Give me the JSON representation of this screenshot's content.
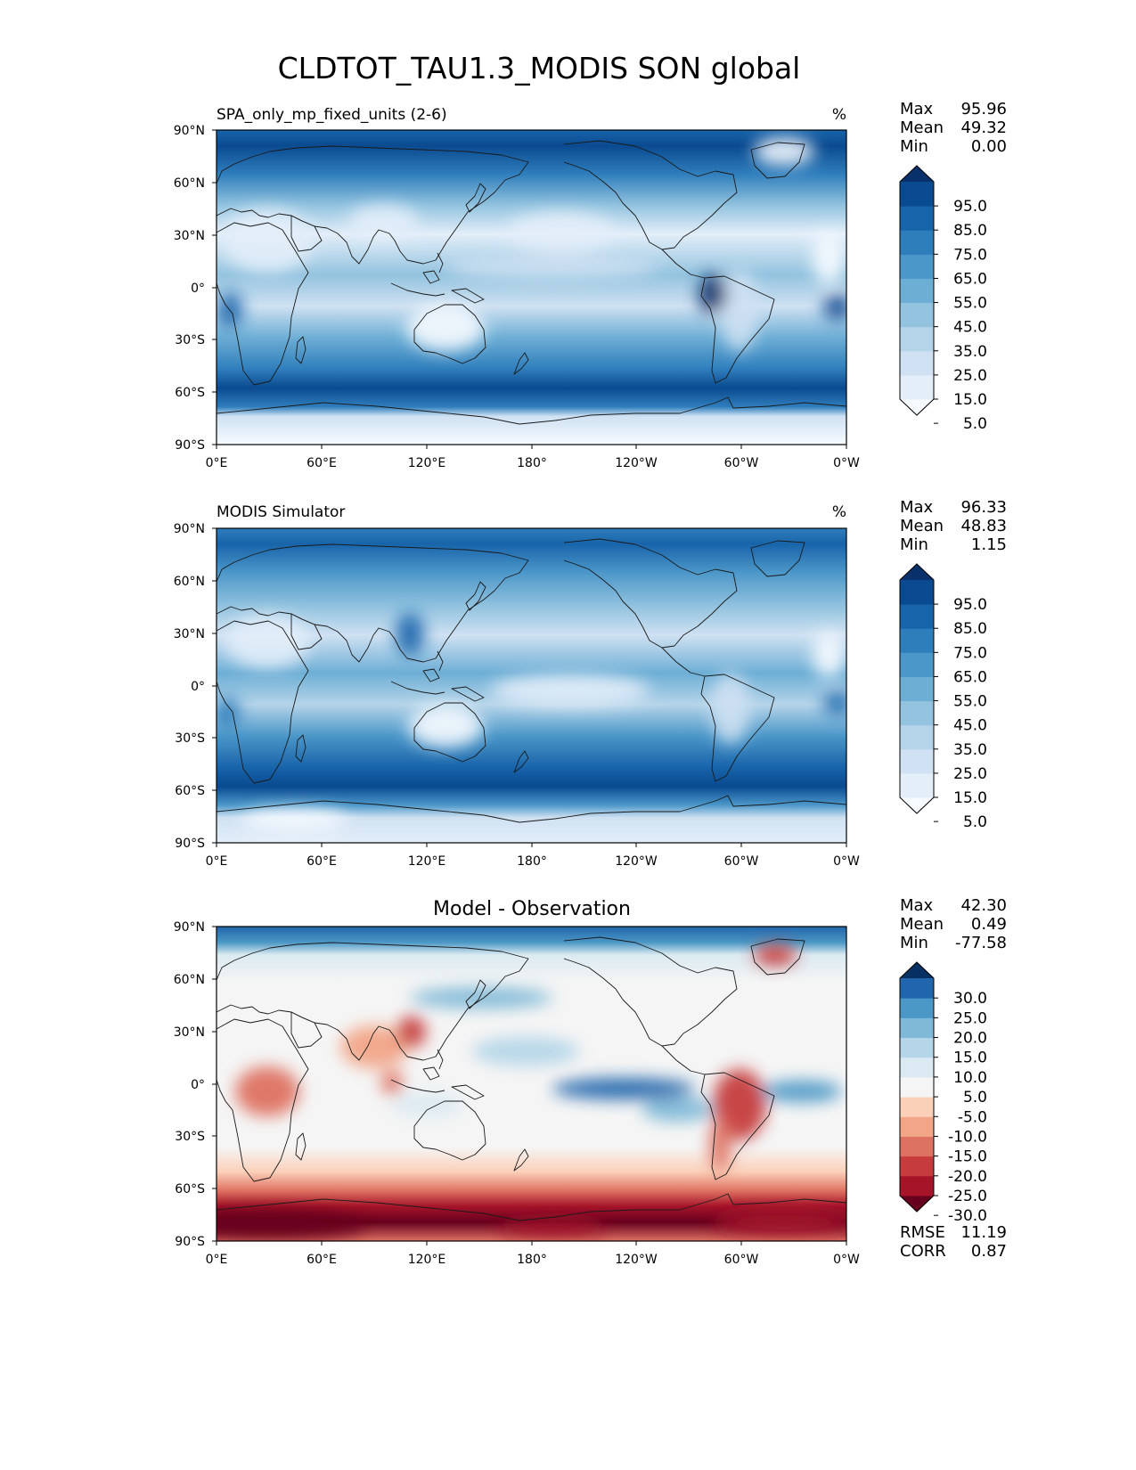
{
  "figure": {
    "title": "CLDTOT_TAU1.3_MODIS SON global"
  },
  "lon_ticks": [
    "0°E",
    "60°E",
    "120°E",
    "180°",
    "120°W",
    "60°W",
    "0°W"
  ],
  "lat_ticks": [
    "90°N",
    "60°N",
    "30°N",
    "0°",
    "30°S",
    "60°S",
    "90°S"
  ],
  "chart_data": [
    {
      "type": "heatmap",
      "title": "SPA_only_mp_fixed_units (2-6)",
      "units": "%",
      "stats": {
        "max": "95.96",
        "mean": "49.32",
        "min": "0.00"
      },
      "stat_labels": {
        "max": "Max",
        "mean": "Mean",
        "min": "Min"
      },
      "colorbar": {
        "levels": [
          "95.0",
          "85.0",
          "75.0",
          "65.0",
          "55.0",
          "45.0",
          "35.0",
          "25.0",
          "15.0",
          "5.0"
        ],
        "colors": [
          "#f7fbff",
          "#e3eef9",
          "#cfe1f2",
          "#b5d4e9",
          "#93c3df",
          "#6daed5",
          "#4b97c9",
          "#2f7ebc",
          "#1864aa",
          "#0a4a90",
          "#08306b"
        ],
        "extend": "both"
      }
    },
    {
      "type": "heatmap",
      "title": "MODIS Simulator",
      "units": "%",
      "stats": {
        "max": "96.33",
        "mean": "48.83",
        "min": "1.15"
      },
      "stat_labels": {
        "max": "Max",
        "mean": "Mean",
        "min": "Min"
      },
      "colorbar": {
        "levels": [
          "95.0",
          "85.0",
          "75.0",
          "65.0",
          "55.0",
          "45.0",
          "35.0",
          "25.0",
          "15.0",
          "5.0"
        ],
        "colors": [
          "#f7fbff",
          "#e3eef9",
          "#cfe1f2",
          "#b5d4e9",
          "#93c3df",
          "#6daed5",
          "#4b97c9",
          "#2f7ebc",
          "#1864aa",
          "#0a4a90",
          "#08306b"
        ],
        "extend": "both"
      }
    },
    {
      "type": "heatmap",
      "title": "Model - Observation",
      "stats": {
        "max": "42.30",
        "mean": "0.49",
        "min": "-77.58"
      },
      "stat_labels": {
        "max": "Max",
        "mean": "Mean",
        "min": "Min"
      },
      "metrics": {
        "rmse": "11.19",
        "corr": "0.87"
      },
      "metric_labels": {
        "rmse": "RMSE",
        "corr": "CORR"
      },
      "colorbar": {
        "levels": [
          "30.0",
          "25.0",
          "20.0",
          "15.0",
          "10.0",
          "5.0",
          "-5.0",
          "-10.0",
          "-15.0",
          "-20.0",
          "-25.0",
          "-30.0"
        ],
        "colors": [
          "#67001f",
          "#a51429",
          "#c63c3d",
          "#de7262",
          "#f2a587",
          "#fbd0b9",
          "#f5f5f5",
          "#dbeaf2",
          "#b4d6e8",
          "#80b9d8",
          "#4b97c5",
          "#2166ac",
          "#053061"
        ],
        "extend": "both"
      }
    }
  ]
}
